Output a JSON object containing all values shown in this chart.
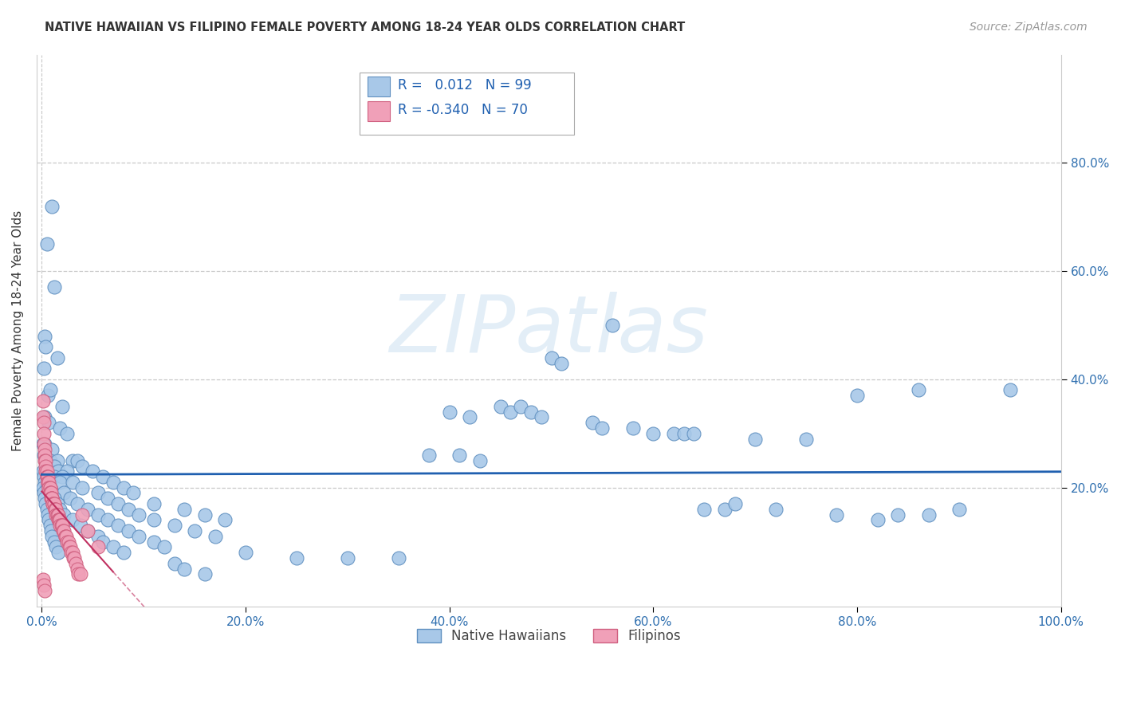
{
  "title": "NATIVE HAWAIIAN VS FILIPINO FEMALE POVERTY AMONG 18-24 YEAR OLDS CORRELATION CHART",
  "source": "Source: ZipAtlas.com",
  "ylabel": "Female Poverty Among 18-24 Year Olds",
  "xlim": [
    -0.005,
    1.0
  ],
  "ylim": [
    -0.02,
    1.0
  ],
  "xticks": [
    0.0,
    0.2,
    0.4,
    0.6,
    0.8,
    1.0
  ],
  "yticks": [
    0.2,
    0.4,
    0.6,
    0.8
  ],
  "xticklabels": [
    "0.0%",
    "20.0%",
    "40.0%",
    "60.0%",
    "80.0%",
    "100.0%"
  ],
  "yticklabels_right": [
    "20.0%",
    "40.0%",
    "60.0%",
    "80.0%"
  ],
  "nh_color": "#a8c8e8",
  "fil_color": "#f0a0b8",
  "nh_edge_color": "#6090c0",
  "fil_edge_color": "#d06080",
  "trend_nh_color": "#2060b0",
  "trend_fil_color": "#c03060",
  "watermark": "ZIPatlas",
  "background_color": "#ffffff",
  "grid_color": "#c8c8c8",
  "nh_points": [
    [
      0.01,
      0.72
    ],
    [
      0.005,
      0.65
    ],
    [
      0.012,
      0.57
    ],
    [
      0.003,
      0.48
    ],
    [
      0.002,
      0.42
    ],
    [
      0.006,
      0.37
    ],
    [
      0.004,
      0.46
    ],
    [
      0.015,
      0.44
    ],
    [
      0.008,
      0.38
    ],
    [
      0.02,
      0.35
    ],
    [
      0.003,
      0.33
    ],
    [
      0.007,
      0.32
    ],
    [
      0.018,
      0.31
    ],
    [
      0.025,
      0.3
    ],
    [
      0.001,
      0.28
    ],
    [
      0.003,
      0.28
    ],
    [
      0.01,
      0.27
    ],
    [
      0.005,
      0.25
    ],
    [
      0.002,
      0.26
    ],
    [
      0.008,
      0.25
    ],
    [
      0.015,
      0.25
    ],
    [
      0.03,
      0.25
    ],
    [
      0.012,
      0.24
    ],
    [
      0.035,
      0.25
    ],
    [
      0.04,
      0.24
    ],
    [
      0.001,
      0.23
    ],
    [
      0.004,
      0.23
    ],
    [
      0.016,
      0.23
    ],
    [
      0.025,
      0.23
    ],
    [
      0.05,
      0.23
    ],
    [
      0.002,
      0.22
    ],
    [
      0.006,
      0.22
    ],
    [
      0.012,
      0.22
    ],
    [
      0.02,
      0.22
    ],
    [
      0.06,
      0.22
    ],
    [
      0.003,
      0.21
    ],
    [
      0.007,
      0.21
    ],
    [
      0.018,
      0.21
    ],
    [
      0.03,
      0.21
    ],
    [
      0.07,
      0.21
    ],
    [
      0.001,
      0.2
    ],
    [
      0.005,
      0.2
    ],
    [
      0.04,
      0.2
    ],
    [
      0.08,
      0.2
    ],
    [
      0.002,
      0.19
    ],
    [
      0.01,
      0.19
    ],
    [
      0.022,
      0.19
    ],
    [
      0.055,
      0.19
    ],
    [
      0.09,
      0.19
    ],
    [
      0.003,
      0.18
    ],
    [
      0.012,
      0.18
    ],
    [
      0.028,
      0.18
    ],
    [
      0.065,
      0.18
    ],
    [
      0.004,
      0.17
    ],
    [
      0.015,
      0.17
    ],
    [
      0.035,
      0.17
    ],
    [
      0.075,
      0.17
    ],
    [
      0.11,
      0.17
    ],
    [
      0.005,
      0.16
    ],
    [
      0.018,
      0.16
    ],
    [
      0.045,
      0.16
    ],
    [
      0.085,
      0.16
    ],
    [
      0.14,
      0.16
    ],
    [
      0.006,
      0.15
    ],
    [
      0.022,
      0.15
    ],
    [
      0.055,
      0.15
    ],
    [
      0.095,
      0.15
    ],
    [
      0.16,
      0.15
    ],
    [
      0.007,
      0.14
    ],
    [
      0.03,
      0.14
    ],
    [
      0.065,
      0.14
    ],
    [
      0.11,
      0.14
    ],
    [
      0.18,
      0.14
    ],
    [
      0.008,
      0.13
    ],
    [
      0.038,
      0.13
    ],
    [
      0.075,
      0.13
    ],
    [
      0.13,
      0.13
    ],
    [
      0.009,
      0.12
    ],
    [
      0.045,
      0.12
    ],
    [
      0.085,
      0.12
    ],
    [
      0.15,
      0.12
    ],
    [
      0.01,
      0.11
    ],
    [
      0.055,
      0.11
    ],
    [
      0.095,
      0.11
    ],
    [
      0.17,
      0.11
    ],
    [
      0.012,
      0.1
    ],
    [
      0.06,
      0.1
    ],
    [
      0.11,
      0.1
    ],
    [
      0.014,
      0.09
    ],
    [
      0.07,
      0.09
    ],
    [
      0.12,
      0.09
    ],
    [
      0.016,
      0.08
    ],
    [
      0.08,
      0.08
    ],
    [
      0.2,
      0.08
    ],
    [
      0.25,
      0.07
    ],
    [
      0.3,
      0.07
    ],
    [
      0.35,
      0.07
    ],
    [
      0.13,
      0.06
    ],
    [
      0.14,
      0.05
    ],
    [
      0.16,
      0.04
    ],
    [
      0.38,
      0.26
    ],
    [
      0.41,
      0.26
    ],
    [
      0.43,
      0.25
    ],
    [
      0.4,
      0.34
    ],
    [
      0.42,
      0.33
    ],
    [
      0.45,
      0.35
    ],
    [
      0.46,
      0.34
    ],
    [
      0.47,
      0.35
    ],
    [
      0.48,
      0.34
    ],
    [
      0.49,
      0.33
    ],
    [
      0.5,
      0.44
    ],
    [
      0.51,
      0.43
    ],
    [
      0.54,
      0.32
    ],
    [
      0.55,
      0.31
    ],
    [
      0.56,
      0.5
    ],
    [
      0.58,
      0.31
    ],
    [
      0.6,
      0.3
    ],
    [
      0.62,
      0.3
    ],
    [
      0.63,
      0.3
    ],
    [
      0.64,
      0.3
    ],
    [
      0.65,
      0.16
    ],
    [
      0.67,
      0.16
    ],
    [
      0.68,
      0.17
    ],
    [
      0.7,
      0.29
    ],
    [
      0.72,
      0.16
    ],
    [
      0.75,
      0.29
    ],
    [
      0.78,
      0.15
    ],
    [
      0.8,
      0.37
    ],
    [
      0.82,
      0.14
    ],
    [
      0.84,
      0.15
    ],
    [
      0.86,
      0.38
    ],
    [
      0.87,
      0.15
    ],
    [
      0.9,
      0.16
    ],
    [
      0.95,
      0.38
    ]
  ],
  "fil_points": [
    [
      0.001,
      0.36
    ],
    [
      0.001,
      0.33
    ],
    [
      0.002,
      0.32
    ],
    [
      0.002,
      0.3
    ],
    [
      0.002,
      0.28
    ],
    [
      0.003,
      0.27
    ],
    [
      0.003,
      0.26
    ],
    [
      0.003,
      0.25
    ],
    [
      0.004,
      0.25
    ],
    [
      0.004,
      0.24
    ],
    [
      0.004,
      0.23
    ],
    [
      0.005,
      0.23
    ],
    [
      0.005,
      0.22
    ],
    [
      0.005,
      0.22
    ],
    [
      0.006,
      0.22
    ],
    [
      0.006,
      0.21
    ],
    [
      0.006,
      0.21
    ],
    [
      0.007,
      0.21
    ],
    [
      0.007,
      0.2
    ],
    [
      0.007,
      0.2
    ],
    [
      0.008,
      0.2
    ],
    [
      0.008,
      0.2
    ],
    [
      0.008,
      0.19
    ],
    [
      0.008,
      0.19
    ],
    [
      0.009,
      0.19
    ],
    [
      0.009,
      0.18
    ],
    [
      0.01,
      0.18
    ],
    [
      0.01,
      0.18
    ],
    [
      0.01,
      0.18
    ],
    [
      0.011,
      0.17
    ],
    [
      0.011,
      0.17
    ],
    [
      0.012,
      0.17
    ],
    [
      0.012,
      0.17
    ],
    [
      0.013,
      0.16
    ],
    [
      0.013,
      0.16
    ],
    [
      0.014,
      0.16
    ],
    [
      0.014,
      0.15
    ],
    [
      0.015,
      0.15
    ],
    [
      0.015,
      0.15
    ],
    [
      0.016,
      0.15
    ],
    [
      0.016,
      0.14
    ],
    [
      0.017,
      0.14
    ],
    [
      0.017,
      0.14
    ],
    [
      0.018,
      0.14
    ],
    [
      0.018,
      0.13
    ],
    [
      0.019,
      0.13
    ],
    [
      0.02,
      0.13
    ],
    [
      0.02,
      0.13
    ],
    [
      0.021,
      0.12
    ],
    [
      0.022,
      0.12
    ],
    [
      0.023,
      0.11
    ],
    [
      0.023,
      0.11
    ],
    [
      0.024,
      0.11
    ],
    [
      0.025,
      0.1
    ],
    [
      0.026,
      0.1
    ],
    [
      0.027,
      0.09
    ],
    [
      0.028,
      0.09
    ],
    [
      0.029,
      0.08
    ],
    [
      0.03,
      0.08
    ],
    [
      0.031,
      0.07
    ],
    [
      0.032,
      0.07
    ],
    [
      0.033,
      0.06
    ],
    [
      0.035,
      0.05
    ],
    [
      0.036,
      0.04
    ],
    [
      0.038,
      0.04
    ],
    [
      0.04,
      0.15
    ],
    [
      0.045,
      0.12
    ],
    [
      0.055,
      0.09
    ],
    [
      0.001,
      0.03
    ],
    [
      0.002,
      0.02
    ],
    [
      0.003,
      0.01
    ]
  ]
}
